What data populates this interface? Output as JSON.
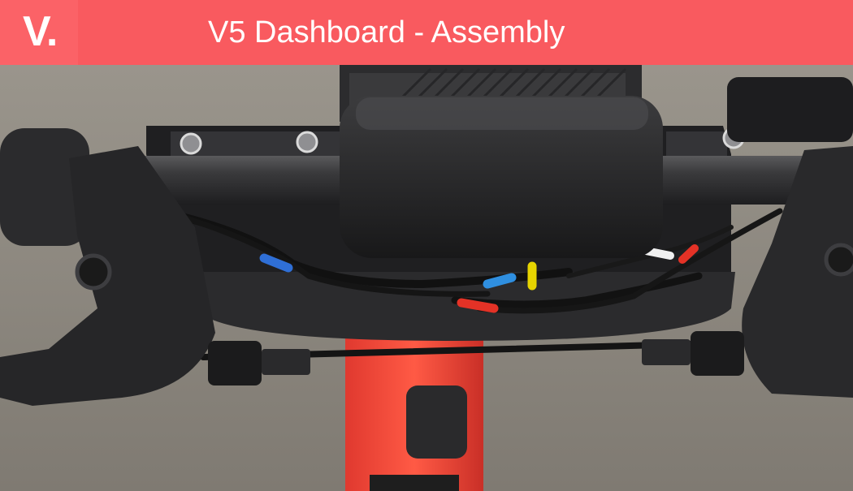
{
  "header": {
    "logo_text": "V.",
    "title": "V5 Dashboard - Assembly",
    "background_color": "#f95a5f"
  },
  "photo": {
    "subject": "scooter-handlebar-dashboard-assembly"
  }
}
